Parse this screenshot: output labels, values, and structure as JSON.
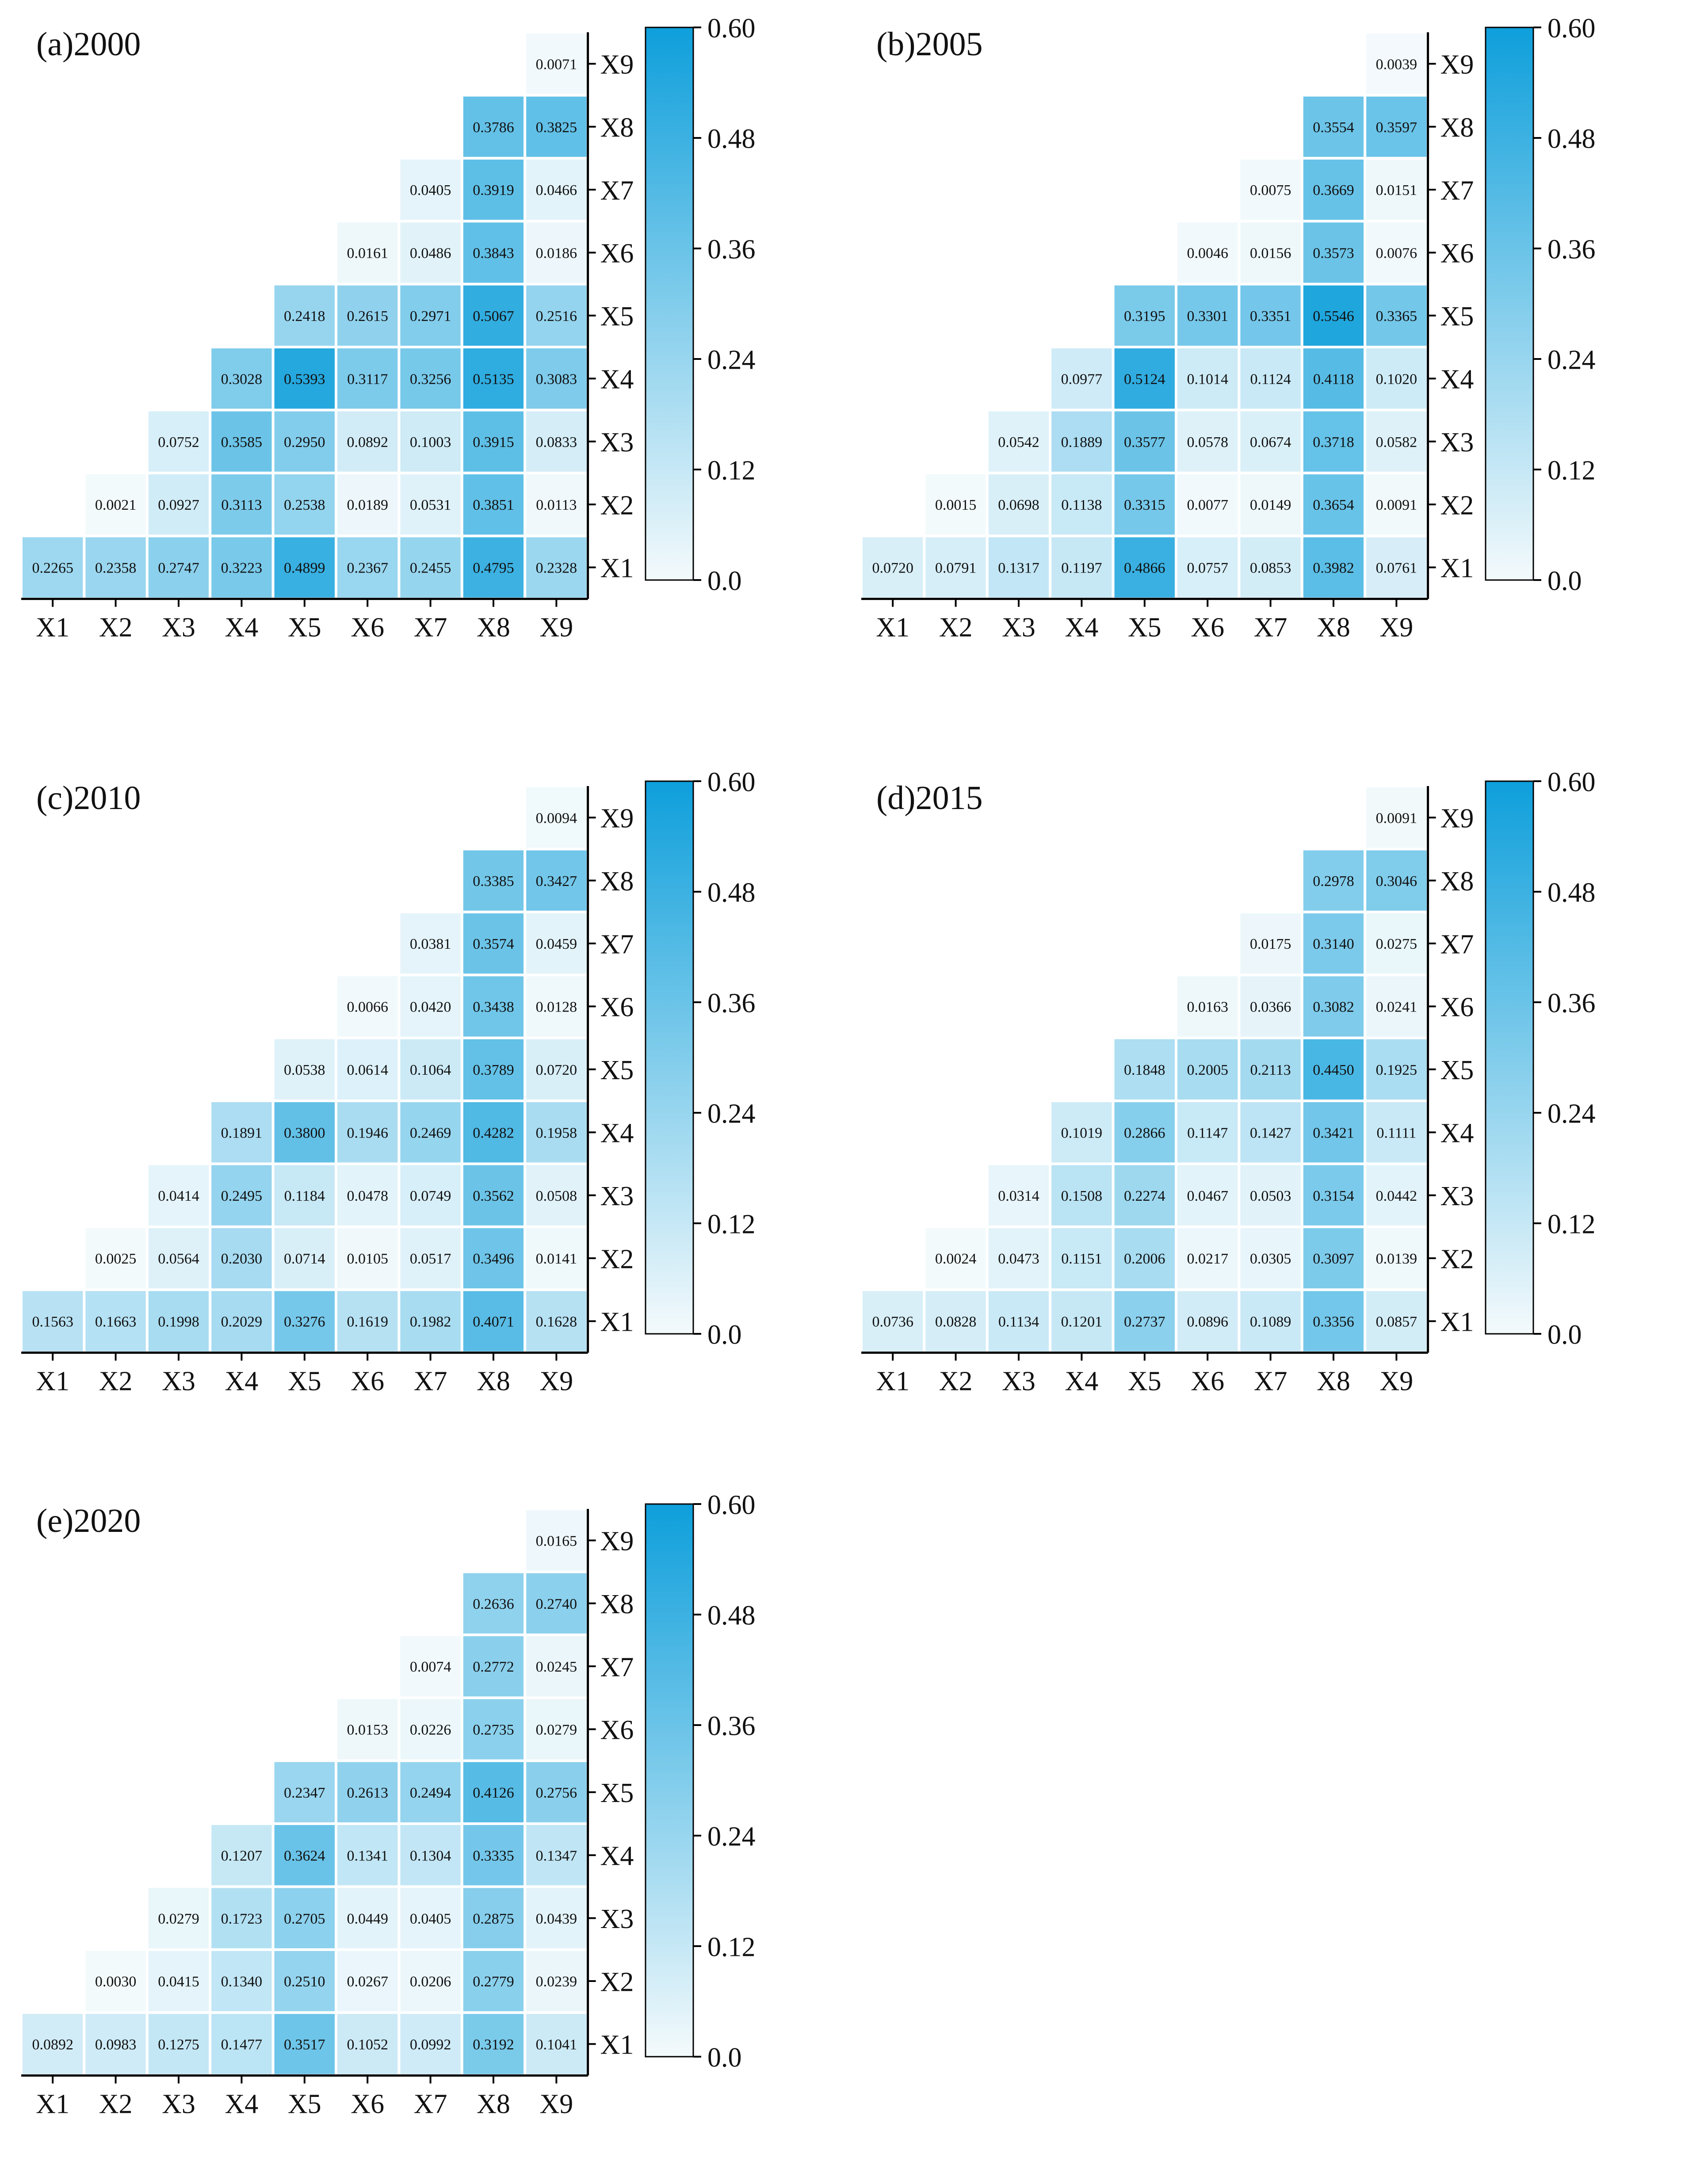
{
  "colors": {
    "low": "#f4fafc",
    "high": "#0e9fdb",
    "cell_border": "#ffffff",
    "axis": "#000000",
    "text": "#111111"
  },
  "scale": {
    "min": 0.0,
    "max": 0.6,
    "ticks": [
      "0.0",
      "0.12",
      "0.24",
      "0.36",
      "0.48",
      "0.60"
    ]
  },
  "chart_data": [
    {
      "type": "heatmap",
      "title": "(a)2000",
      "xlabels": [
        "X1",
        "X2",
        "X3",
        "X4",
        "X5",
        "X6",
        "X7",
        "X8",
        "X9"
      ],
      "ylabels": [
        "X1",
        "X2",
        "X3",
        "X4",
        "X5",
        "X6",
        "X7",
        "X8",
        "X9"
      ],
      "rows": [
        [
          0.2265,
          0.2358,
          0.2747,
          0.3223,
          0.4899,
          0.2367,
          0.2455,
          0.4795,
          0.2328
        ],
        [
          null,
          0.0021,
          0.0927,
          0.3113,
          0.2538,
          0.0189,
          0.0531,
          0.3851,
          0.0113
        ],
        [
          null,
          null,
          0.0752,
          0.3585,
          0.295,
          0.0892,
          0.1003,
          0.3915,
          0.0833
        ],
        [
          null,
          null,
          null,
          0.3028,
          0.5393,
          0.3117,
          0.3256,
          0.5135,
          0.3083
        ],
        [
          null,
          null,
          null,
          null,
          0.2418,
          0.2615,
          0.2971,
          0.5067,
          0.2516
        ],
        [
          null,
          null,
          null,
          null,
          null,
          0.0161,
          0.0486,
          0.3843,
          0.0186
        ],
        [
          null,
          null,
          null,
          null,
          null,
          null,
          0.0405,
          0.3919,
          0.0466
        ],
        [
          null,
          null,
          null,
          null,
          null,
          null,
          null,
          0.3786,
          0.3825
        ],
        [
          null,
          null,
          null,
          null,
          null,
          null,
          null,
          null,
          0.0071
        ]
      ],
      "colorbar_range": [
        0.0,
        0.6
      ]
    },
    {
      "type": "heatmap",
      "title": "(b)2005",
      "xlabels": [
        "X1",
        "X2",
        "X3",
        "X4",
        "X5",
        "X6",
        "X7",
        "X8",
        "X9"
      ],
      "ylabels": [
        "X1",
        "X2",
        "X3",
        "X4",
        "X5",
        "X6",
        "X7",
        "X8",
        "X9"
      ],
      "rows": [
        [
          0.072,
          0.0791,
          0.1317,
          0.1197,
          0.4866,
          0.0757,
          0.0853,
          0.3982,
          0.0761
        ],
        [
          null,
          0.0015,
          0.0698,
          0.1138,
          0.3315,
          0.0077,
          0.0149,
          0.3654,
          0.0091
        ],
        [
          null,
          null,
          0.0542,
          0.1889,
          0.3577,
          0.0578,
          0.0674,
          0.3718,
          0.0582
        ],
        [
          null,
          null,
          null,
          0.0977,
          0.5124,
          0.1014,
          0.1124,
          0.4118,
          0.102
        ],
        [
          null,
          null,
          null,
          null,
          0.3195,
          0.3301,
          0.3351,
          0.5546,
          0.3365
        ],
        [
          null,
          null,
          null,
          null,
          null,
          0.0046,
          0.0156,
          0.3573,
          0.0076
        ],
        [
          null,
          null,
          null,
          null,
          null,
          null,
          0.0075,
          0.3669,
          0.0151
        ],
        [
          null,
          null,
          null,
          null,
          null,
          null,
          null,
          0.3554,
          0.3597
        ],
        [
          null,
          null,
          null,
          null,
          null,
          null,
          null,
          null,
          0.0039
        ]
      ],
      "colorbar_range": [
        0.0,
        0.6
      ]
    },
    {
      "type": "heatmap",
      "title": "(c)2010",
      "xlabels": [
        "X1",
        "X2",
        "X3",
        "X4",
        "X5",
        "X6",
        "X7",
        "X8",
        "X9"
      ],
      "ylabels": [
        "X1",
        "X2",
        "X3",
        "X4",
        "X5",
        "X6",
        "X7",
        "X8",
        "X9"
      ],
      "rows": [
        [
          0.1563,
          0.1663,
          0.1998,
          0.2029,
          0.3276,
          0.1619,
          0.1982,
          0.4071,
          0.1628
        ],
        [
          null,
          0.0025,
          0.0564,
          0.203,
          0.0714,
          0.0105,
          0.0517,
          0.3496,
          0.0141
        ],
        [
          null,
          null,
          0.0414,
          0.2495,
          0.1184,
          0.0478,
          0.0749,
          0.3562,
          0.0508
        ],
        [
          null,
          null,
          null,
          0.1891,
          0.38,
          0.1946,
          0.2469,
          0.4282,
          0.1958
        ],
        [
          null,
          null,
          null,
          null,
          0.0538,
          0.0614,
          0.1064,
          0.3789,
          0.072
        ],
        [
          null,
          null,
          null,
          null,
          null,
          0.0066,
          0.042,
          0.3438,
          0.0128
        ],
        [
          null,
          null,
          null,
          null,
          null,
          null,
          0.0381,
          0.3574,
          0.0459
        ],
        [
          null,
          null,
          null,
          null,
          null,
          null,
          null,
          0.3385,
          0.3427
        ],
        [
          null,
          null,
          null,
          null,
          null,
          null,
          null,
          null,
          0.0094
        ]
      ],
      "colorbar_range": [
        0.0,
        0.6
      ]
    },
    {
      "type": "heatmap",
      "title": "(d)2015",
      "xlabels": [
        "X1",
        "X2",
        "X3",
        "X4",
        "X5",
        "X6",
        "X7",
        "X8",
        "X9"
      ],
      "ylabels": [
        "X1",
        "X2",
        "X3",
        "X4",
        "X5",
        "X6",
        "X7",
        "X8",
        "X9"
      ],
      "rows": [
        [
          0.0736,
          0.0828,
          0.1134,
          0.1201,
          0.2737,
          0.0896,
          0.1089,
          0.3356,
          0.0857
        ],
        [
          null,
          0.0024,
          0.0473,
          0.1151,
          0.2006,
          0.0217,
          0.0305,
          0.3097,
          0.0139
        ],
        [
          null,
          null,
          0.0314,
          0.1508,
          0.2274,
          0.0467,
          0.0503,
          0.3154,
          0.0442
        ],
        [
          null,
          null,
          null,
          0.1019,
          0.2866,
          0.1147,
          0.1427,
          0.3421,
          0.1111
        ],
        [
          null,
          null,
          null,
          null,
          0.1848,
          0.2005,
          0.2113,
          0.445,
          0.1925
        ],
        [
          null,
          null,
          null,
          null,
          null,
          0.0163,
          0.0366,
          0.3082,
          0.0241
        ],
        [
          null,
          null,
          null,
          null,
          null,
          null,
          0.0175,
          0.314,
          0.0275
        ],
        [
          null,
          null,
          null,
          null,
          null,
          null,
          null,
          0.2978,
          0.3046
        ],
        [
          null,
          null,
          null,
          null,
          null,
          null,
          null,
          null,
          0.0091
        ]
      ],
      "colorbar_range": [
        0.0,
        0.6
      ]
    },
    {
      "type": "heatmap",
      "title": "(e)2020",
      "xlabels": [
        "X1",
        "X2",
        "X3",
        "X4",
        "X5",
        "X6",
        "X7",
        "X8",
        "X9"
      ],
      "ylabels": [
        "X1",
        "X2",
        "X3",
        "X4",
        "X5",
        "X6",
        "X7",
        "X8",
        "X9"
      ],
      "rows": [
        [
          0.0892,
          0.0983,
          0.1275,
          0.1477,
          0.3517,
          0.1052,
          0.0992,
          0.3192,
          0.1041
        ],
        [
          null,
          0.003,
          0.0415,
          0.134,
          0.251,
          0.0267,
          0.0206,
          0.2779,
          0.0239
        ],
        [
          null,
          null,
          0.0279,
          0.1723,
          0.2705,
          0.0449,
          0.0405,
          0.2875,
          0.0439
        ],
        [
          null,
          null,
          null,
          0.1207,
          0.3624,
          0.1341,
          0.1304,
          0.3335,
          0.1347
        ],
        [
          null,
          null,
          null,
          null,
          0.2347,
          0.2613,
          0.2494,
          0.4126,
          0.2756
        ],
        [
          null,
          null,
          null,
          null,
          null,
          0.0153,
          0.0226,
          0.2735,
          0.0279
        ],
        [
          null,
          null,
          null,
          null,
          null,
          null,
          0.0074,
          0.2772,
          0.0245
        ],
        [
          null,
          null,
          null,
          null,
          null,
          null,
          null,
          0.2636,
          0.274
        ],
        [
          null,
          null,
          null,
          null,
          null,
          null,
          null,
          null,
          0.0165
        ]
      ],
      "colorbar_range": [
        0.0,
        0.6
      ]
    }
  ]
}
